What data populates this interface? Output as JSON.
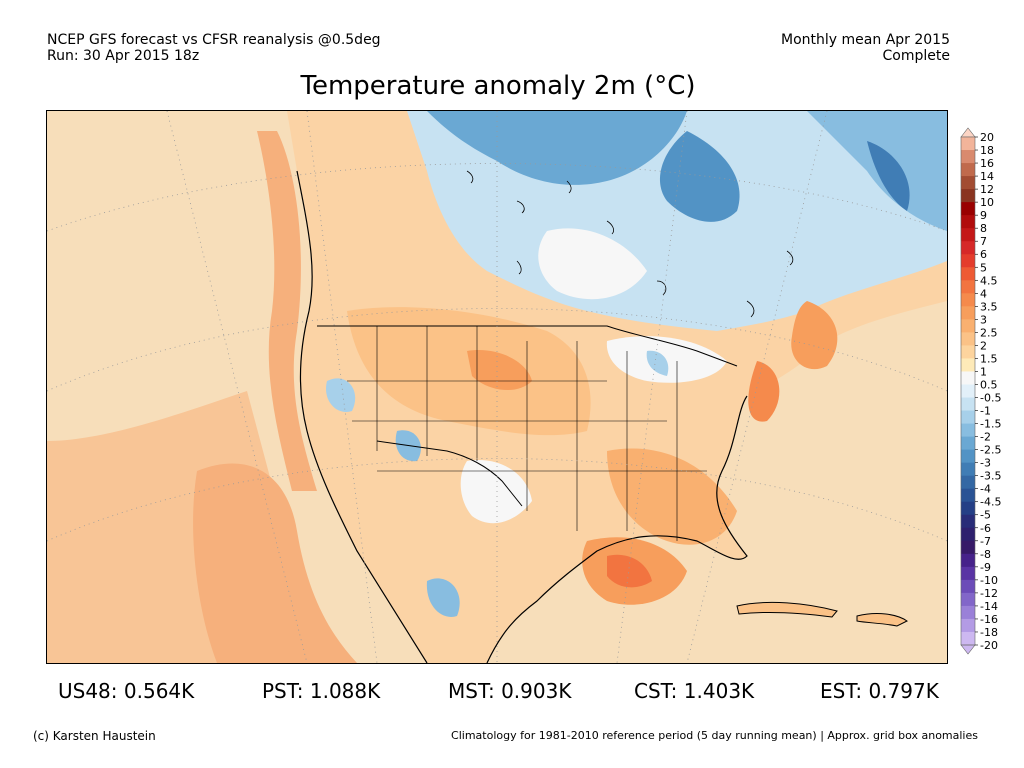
{
  "header": {
    "line1": "NCEP GFS forecast vs CFSR reanalysis @0.5deg",
    "line2": "Run: 30 Apr 2015 18z",
    "period": "Monthly mean Apr 2015",
    "status": "Complete"
  },
  "title": "Temperature anomaly 2m (°C)",
  "colorbar": {
    "labels": [
      "20",
      "18",
      "16",
      "14",
      "12",
      "10",
      "9",
      "8",
      "7",
      "6",
      "5",
      "4.5",
      "4",
      "3.5",
      "3",
      "2.5",
      "2",
      "1.5",
      "1",
      "0.5",
      "-0.5",
      "-1",
      "-1.5",
      "-2",
      "-2.5",
      "-3",
      "-3.5",
      "-4",
      "-4.5",
      "-5",
      "-6",
      "-7",
      "-8",
      "-9",
      "-10",
      "-12",
      "-14",
      "-16",
      "-18",
      "-20"
    ],
    "colors": [
      "#fcd5c5",
      "#f2b49a",
      "#d98a6e",
      "#c06a4c",
      "#a24c32",
      "#8a3420",
      "#990000",
      "#b10c0c",
      "#c41818",
      "#d62828",
      "#e43c2c",
      "#ee5a34",
      "#f27440",
      "#f58a4c",
      "#f79e5c",
      "#f9b070",
      "#fbc287",
      "#fdd49e",
      "#feeab8",
      "#f7f7f7",
      "#e2f0f9",
      "#c7e2f2",
      "#a7d0ea",
      "#88bde0",
      "#6aa8d3",
      "#5293c5",
      "#407db5",
      "#3468a4",
      "#2a5395",
      "#243f86",
      "#282c78",
      "#2e206e",
      "#371a68",
      "#46228a",
      "#5a34a4",
      "#6c4cb8",
      "#8266c9",
      "#9a80d8",
      "#b39be5",
      "#cdb8f1"
    ]
  },
  "stats": [
    {
      "label": "US48:",
      "value": "0.564K"
    },
    {
      "label": "PST:",
      "value": "1.088K"
    },
    {
      "label": "MST:",
      "value": "0.903K"
    },
    {
      "label": "CST:",
      "value": "1.403K"
    },
    {
      "label": "EST:",
      "value": "0.797K"
    }
  ],
  "footer": {
    "credit": "(c) Karsten Haustein",
    "note": "Climatology for 1981-2010 reference period (5 day running mean) | Approx. grid box anomalies"
  }
}
